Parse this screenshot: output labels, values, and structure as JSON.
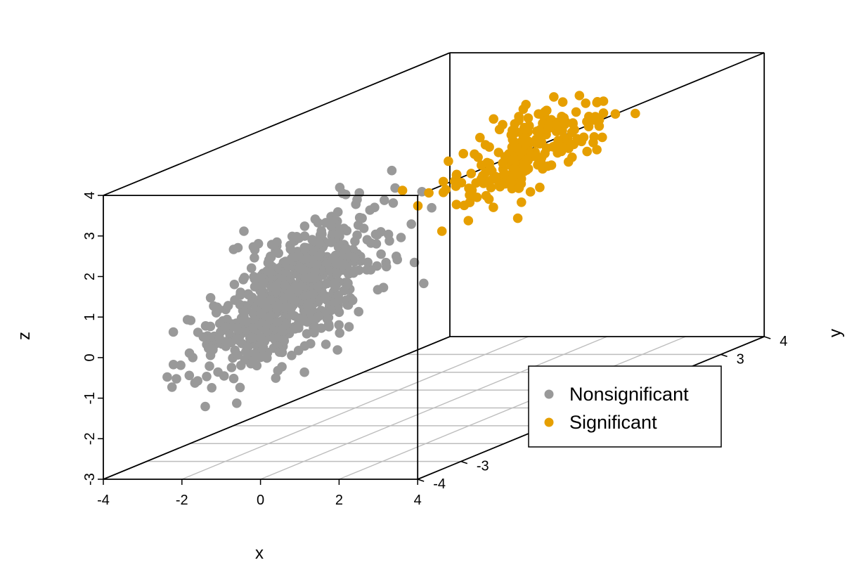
{
  "chart_data": {
    "type": "scatter",
    "projection": "3d",
    "grid": "floor",
    "legend_position": "bottom-right",
    "xlabel": "x",
    "ylabel": "y",
    "zlabel": "z",
    "xlim": [
      -4,
      4
    ],
    "ylim": [
      -4,
      4
    ],
    "zlim": [
      -3,
      4
    ],
    "x_ticks": [
      "-4",
      "-2",
      "0",
      "2",
      "4"
    ],
    "y_ticks_visible": [
      "-4",
      "-3",
      "3",
      "4"
    ],
    "z_ticks": [
      "-3",
      "-2",
      "-1",
      "0",
      "1",
      "2",
      "3",
      "4"
    ],
    "series": [
      {
        "name": "Nonsignificant",
        "color": "#999999",
        "points_count_estimate": 700,
        "mean": [
          0,
          -3.3,
          1.2
        ],
        "sd": [
          1.05,
          0.35,
          0.95
        ]
      },
      {
        "name": "Significant",
        "color": "#E69F00",
        "points_count_estimate": 230,
        "mean": [
          0,
          2.1,
          2.4
        ],
        "sd": [
          0.9,
          0.45,
          0.6
        ]
      }
    ]
  }
}
